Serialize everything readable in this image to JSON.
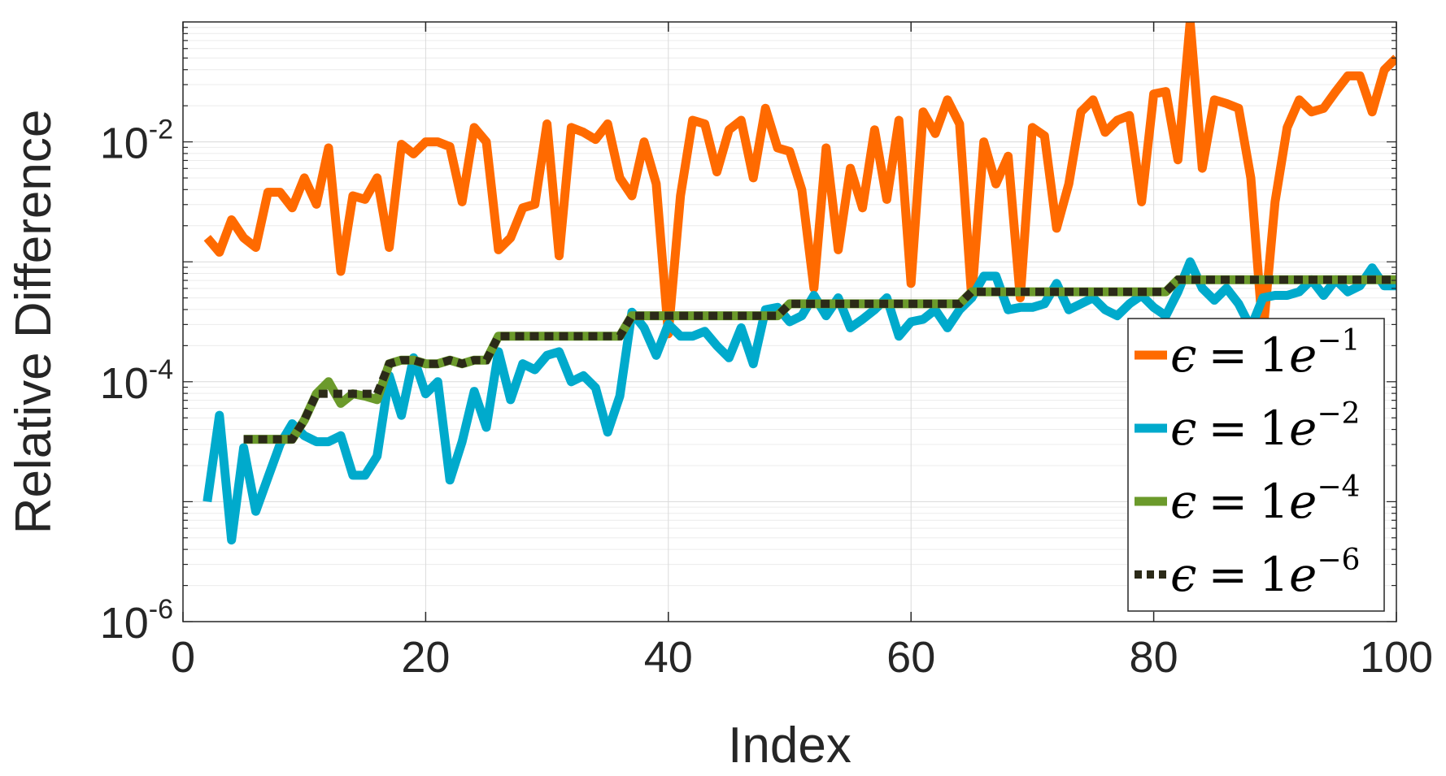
{
  "chart_data": {
    "type": "line",
    "title": "",
    "xlabel": "Index",
    "ylabel": "Relative Difference",
    "xlim": [
      0,
      100
    ],
    "ylim_exponent": [
      -6,
      -1
    ],
    "yscale": "log",
    "grid": true,
    "legend_placement": "bottom-right",
    "x_ticks": [
      {
        "value": 0,
        "label": "0"
      },
      {
        "value": 20,
        "label": "20"
      },
      {
        "value": 40,
        "label": "40"
      },
      {
        "value": 60,
        "label": "60"
      },
      {
        "value": 80,
        "label": "80"
      },
      {
        "value": 100,
        "label": "100"
      }
    ],
    "y_ticks": [
      {
        "exp": -2,
        "base": "10",
        "sup": "-2"
      },
      {
        "exp": -4,
        "base": "10",
        "sup": "-4"
      },
      {
        "exp": -6,
        "base": "10",
        "sup": "-6"
      }
    ],
    "series": [
      {
        "name": "ε = 1e^{-1}",
        "legend_sup": "−1",
        "color": "#FF6A00",
        "style": "solid",
        "x": [
          2,
          3,
          4,
          5,
          6,
          7,
          8,
          9,
          10,
          11,
          12,
          13,
          14,
          15,
          16,
          17,
          18,
          19,
          20,
          21,
          22,
          23,
          24,
          25,
          26,
          27,
          28,
          29,
          30,
          31,
          32,
          33,
          34,
          35,
          36,
          37,
          38,
          39,
          40,
          41,
          42,
          43,
          44,
          45,
          46,
          47,
          48,
          49,
          50,
          51,
          52,
          53,
          54,
          55,
          56,
          57,
          58,
          59,
          60,
          61,
          62,
          63,
          64,
          65,
          66,
          67,
          68,
          69,
          70,
          71,
          72,
          73,
          74,
          75,
          76,
          77,
          78,
          79,
          80,
          81,
          82,
          83,
          84,
          85,
          86,
          87,
          88,
          89,
          90,
          91,
          92,
          93,
          94,
          95,
          96,
          97,
          98,
          99,
          100
        ],
        "y": [
          -2.8,
          -2.92,
          -2.65,
          -2.8,
          -2.88,
          -2.42,
          -2.42,
          -2.55,
          -2.3,
          -2.52,
          -2.05,
          -3.08,
          -2.45,
          -2.48,
          -2.3,
          -2.88,
          -2.02,
          -2.1,
          -2.0,
          -2.0,
          -2.04,
          -2.5,
          -1.88,
          -2.0,
          -2.9,
          -2.8,
          -2.55,
          -2.52,
          -1.85,
          -2.95,
          -1.88,
          -1.92,
          -1.98,
          -1.85,
          -2.3,
          -2.45,
          -2.0,
          -2.35,
          -3.6,
          -2.45,
          -1.82,
          -1.85,
          -2.25,
          -1.9,
          -1.82,
          -2.3,
          -1.72,
          -2.05,
          -2.08,
          -2.4,
          -3.22,
          -2.05,
          -2.9,
          -2.22,
          -2.55,
          -1.9,
          -2.48,
          -1.82,
          -3.18,
          -1.75,
          -1.93,
          -1.65,
          -1.85,
          -3.3,
          -2.0,
          -2.35,
          -2.12,
          -3.3,
          -1.88,
          -1.95,
          -2.72,
          -2.35,
          -1.75,
          -1.65,
          -1.92,
          -1.82,
          -1.78,
          -2.5,
          -1.6,
          -1.58,
          -2.15,
          -1.0,
          -2.22,
          -1.65,
          -1.68,
          -1.72,
          -2.3,
          -3.6,
          -2.5,
          -1.88,
          -1.65,
          -1.75,
          -1.72,
          -1.58,
          -1.45,
          -1.45,
          -1.75,
          -1.4,
          -1.3
        ]
      },
      {
        "name": "ε = 1e^{-2}",
        "legend_sup": "−2",
        "color": "#00AACC",
        "style": "solid",
        "x": [
          2,
          3,
          4,
          5,
          6,
          7,
          8,
          9,
          10,
          11,
          12,
          13,
          14,
          15,
          16,
          17,
          18,
          19,
          20,
          21,
          22,
          23,
          24,
          25,
          26,
          27,
          28,
          29,
          30,
          31,
          32,
          33,
          34,
          35,
          36,
          37,
          38,
          39,
          40,
          41,
          42,
          43,
          44,
          45,
          46,
          47,
          48,
          49,
          50,
          51,
          52,
          53,
          54,
          55,
          56,
          57,
          58,
          59,
          60,
          61,
          62,
          63,
          64,
          65,
          66,
          67,
          68,
          69,
          70,
          71,
          72,
          73,
          74,
          75,
          76,
          77,
          78,
          79,
          80,
          81,
          82,
          83,
          84,
          85,
          86,
          87,
          88,
          89,
          90,
          91,
          92,
          93,
          94,
          95,
          96,
          97,
          98,
          99,
          100
        ],
        "y": [
          -5.0,
          -4.28,
          -5.32,
          -4.55,
          -5.08,
          -4.8,
          -4.52,
          -4.35,
          -4.45,
          -4.5,
          -4.5,
          -4.45,
          -4.78,
          -4.78,
          -4.62,
          -3.95,
          -4.28,
          -3.8,
          -4.1,
          -4.0,
          -4.82,
          -4.5,
          -4.08,
          -4.38,
          -3.75,
          -4.15,
          -3.85,
          -3.9,
          -3.78,
          -3.75,
          -4.0,
          -3.95,
          -4.05,
          -4.42,
          -4.12,
          -3.42,
          -3.55,
          -3.78,
          -3.52,
          -3.62,
          -3.62,
          -3.58,
          -3.7,
          -3.8,
          -3.55,
          -3.85,
          -3.4,
          -3.38,
          -3.5,
          -3.45,
          -3.28,
          -3.45,
          -3.3,
          -3.55,
          -3.48,
          -3.4,
          -3.3,
          -3.62,
          -3.5,
          -3.48,
          -3.4,
          -3.55,
          -3.4,
          -3.3,
          -3.12,
          -3.12,
          -3.4,
          -3.38,
          -3.38,
          -3.35,
          -3.18,
          -3.4,
          -3.35,
          -3.3,
          -3.4,
          -3.45,
          -3.35,
          -3.28,
          -3.38,
          -3.45,
          -3.25,
          -3.0,
          -3.22,
          -3.32,
          -3.22,
          -3.35,
          -3.55,
          -3.3,
          -3.28,
          -3.28,
          -3.25,
          -3.15,
          -3.28,
          -3.15,
          -3.25,
          -3.2,
          -3.05,
          -3.2,
          -3.2
        ]
      },
      {
        "name": "ε = 1e^{-4}",
        "legend_sup": "−4",
        "color": "#6B9A2B",
        "style": "solid",
        "x": [
          5,
          6,
          7,
          8,
          9,
          10,
          11,
          12,
          13,
          14,
          15,
          16,
          17,
          18,
          19,
          20,
          21,
          22,
          23,
          24,
          25,
          26,
          27,
          28,
          29,
          30,
          31,
          32,
          33,
          34,
          35,
          36,
          37,
          38,
          39,
          40,
          41,
          42,
          43,
          44,
          45,
          46,
          47,
          48,
          49,
          50,
          51,
          52,
          53,
          54,
          55,
          56,
          57,
          58,
          59,
          60,
          61,
          62,
          63,
          64,
          65,
          66,
          67,
          68,
          69,
          70,
          71,
          72,
          73,
          74,
          75,
          76,
          77,
          78,
          79,
          80,
          81,
          82,
          83,
          84,
          85,
          86,
          87,
          88,
          89,
          90,
          91,
          92,
          93,
          94,
          95,
          96,
          97,
          98,
          99,
          100
        ],
        "y": [
          -4.48,
          -4.48,
          -4.48,
          -4.48,
          -4.48,
          -4.32,
          -4.1,
          -4.0,
          -4.18,
          -4.1,
          -4.12,
          -4.15,
          -3.85,
          -3.82,
          -3.82,
          -3.85,
          -3.85,
          -3.82,
          -3.85,
          -3.82,
          -3.82,
          -3.62,
          -3.62,
          -3.62,
          -3.62,
          -3.62,
          -3.62,
          -3.62,
          -3.62,
          -3.62,
          -3.62,
          -3.62,
          -3.45,
          -3.45,
          -3.45,
          -3.45,
          -3.45,
          -3.45,
          -3.45,
          -3.45,
          -3.45,
          -3.45,
          -3.45,
          -3.45,
          -3.45,
          -3.35,
          -3.35,
          -3.35,
          -3.35,
          -3.35,
          -3.35,
          -3.35,
          -3.35,
          -3.35,
          -3.35,
          -3.35,
          -3.35,
          -3.35,
          -3.35,
          -3.35,
          -3.25,
          -3.25,
          -3.25,
          -3.25,
          -3.25,
          -3.25,
          -3.25,
          -3.25,
          -3.25,
          -3.25,
          -3.25,
          -3.25,
          -3.25,
          -3.25,
          -3.25,
          -3.25,
          -3.25,
          -3.15,
          -3.15,
          -3.15,
          -3.15,
          -3.15,
          -3.15,
          -3.15,
          -3.15,
          -3.15,
          -3.15,
          -3.15,
          -3.15,
          -3.15,
          -3.15,
          -3.15,
          -3.15,
          -3.15,
          -3.15,
          -3.15
        ]
      },
      {
        "name": "ε = 1e^{-6}",
        "legend_sup": "−6",
        "color": "#2B2A18",
        "style": "dotted",
        "x": [
          5,
          6,
          7,
          8,
          9,
          10,
          11,
          12,
          13,
          14,
          15,
          16,
          17,
          18,
          19,
          20,
          21,
          22,
          23,
          24,
          25,
          26,
          27,
          28,
          29,
          30,
          31,
          32,
          33,
          34,
          35,
          36,
          37,
          38,
          39,
          40,
          41,
          42,
          43,
          44,
          45,
          46,
          47,
          48,
          49,
          50,
          51,
          52,
          53,
          54,
          55,
          56,
          57,
          58,
          59,
          60,
          61,
          62,
          63,
          64,
          65,
          66,
          67,
          68,
          69,
          70,
          71,
          72,
          73,
          74,
          75,
          76,
          77,
          78,
          79,
          80,
          81,
          82,
          83,
          84,
          85,
          86,
          87,
          88,
          89,
          90,
          91,
          92,
          93,
          94,
          95,
          96,
          97,
          98,
          99,
          100
        ],
        "y": [
          -4.48,
          -4.48,
          -4.48,
          -4.48,
          -4.48,
          -4.32,
          -4.1,
          -4.1,
          -4.1,
          -4.1,
          -4.1,
          -4.1,
          -3.85,
          -3.82,
          -3.82,
          -3.85,
          -3.85,
          -3.82,
          -3.85,
          -3.82,
          -3.82,
          -3.62,
          -3.62,
          -3.62,
          -3.62,
          -3.62,
          -3.62,
          -3.62,
          -3.62,
          -3.62,
          -3.62,
          -3.62,
          -3.45,
          -3.45,
          -3.45,
          -3.45,
          -3.45,
          -3.45,
          -3.45,
          -3.45,
          -3.45,
          -3.45,
          -3.45,
          -3.45,
          -3.45,
          -3.35,
          -3.35,
          -3.35,
          -3.35,
          -3.35,
          -3.35,
          -3.35,
          -3.35,
          -3.35,
          -3.35,
          -3.35,
          -3.35,
          -3.35,
          -3.35,
          -3.35,
          -3.25,
          -3.25,
          -3.25,
          -3.25,
          -3.25,
          -3.25,
          -3.25,
          -3.25,
          -3.25,
          -3.25,
          -3.25,
          -3.25,
          -3.25,
          -3.25,
          -3.25,
          -3.25,
          -3.25,
          -3.15,
          -3.15,
          -3.15,
          -3.15,
          -3.15,
          -3.15,
          -3.15,
          -3.15,
          -3.15,
          -3.15,
          -3.15,
          -3.15,
          -3.15,
          -3.15,
          -3.15,
          -3.15,
          -3.15,
          -3.15,
          -3.15
        ]
      }
    ],
    "y_values_note": ""
  }
}
